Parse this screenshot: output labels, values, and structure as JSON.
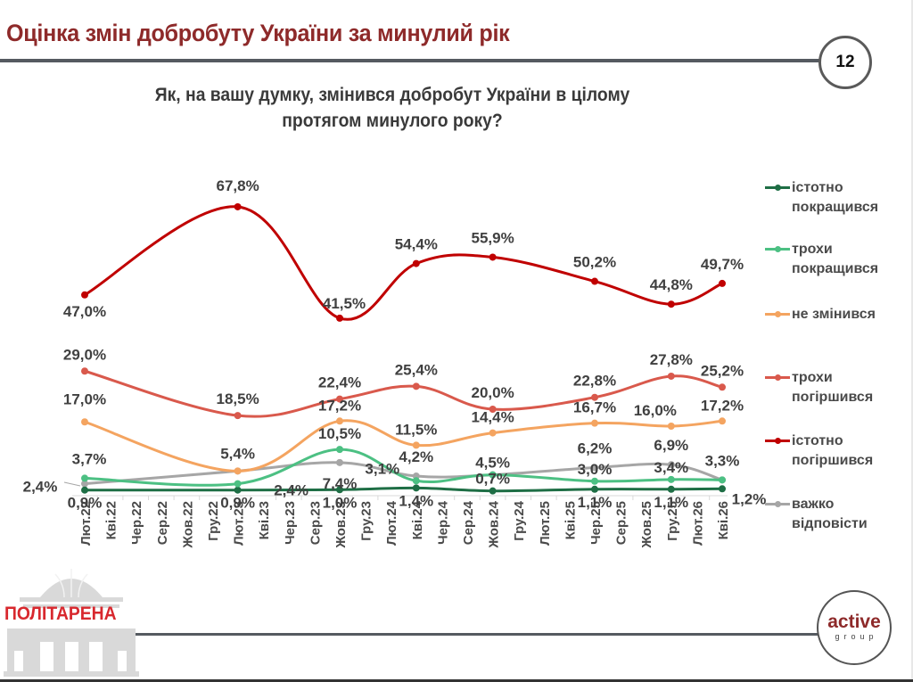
{
  "header": {
    "title": "Оцінка змін добробуту України за минулий рік",
    "page_number": "12"
  },
  "question": {
    "line1": "Як, на вашу думку, змінився добробут України в цілому",
    "line2": "протягом минулого року?"
  },
  "branding": {
    "left_logo": "ПОЛІТАРЕНА",
    "right_logo_main": "active",
    "right_logo_sub": "group"
  },
  "chart_data": {
    "type": "line",
    "title": "Як, на вашу думку, змінився добробут України в цілому протягом минулого року?",
    "xlabel": "",
    "ylabel": "",
    "ylim": [
      0,
      75
    ],
    "grid": false,
    "legend_position": "right",
    "categories": [
      "Лют.22",
      "Кві.22",
      "Чер.22",
      "Сер.22",
      "Жов.22",
      "Гру.22",
      "Лют.23",
      "Кві.23",
      "Чер.23",
      "Сер.23",
      "Жов.23",
      "Гру.23",
      "Лют.24",
      "Кві.24",
      "Чер.24",
      "Сер.24",
      "Жов.24",
      "Гру.24",
      "Лют.25",
      "Кві.25",
      "Чер.25",
      "Сер.25",
      "Жов.25",
      "Гру.25",
      "Лют.26",
      "Кві.26"
    ],
    "series": [
      {
        "name": "істотно покращився",
        "color": "#1e6e45",
        "points": [
          [
            0,
            0.9
          ],
          [
            6,
            0.9
          ],
          [
            10,
            1.0
          ],
          [
            13,
            1.4
          ],
          [
            16,
            0.7
          ],
          [
            20,
            1.1
          ],
          [
            23,
            1.1
          ],
          [
            25,
            1.2
          ]
        ],
        "labels": [
          "0,9%",
          "0,9%",
          "1,0%",
          "1,4%",
          "0,7%",
          "1,1%",
          "1,1%",
          "1,2%"
        ]
      },
      {
        "name": "трохи покращився",
        "color": "#4cc083",
        "points": [
          [
            0,
            3.7
          ],
          [
            6,
            2.4
          ],
          [
            10,
            10.5
          ],
          [
            13,
            3.1
          ],
          [
            16,
            4.5
          ],
          [
            20,
            3.0
          ],
          [
            23,
            3.4
          ],
          [
            25,
            3.3
          ]
        ],
        "labels": [
          "3,7%",
          "2,4%",
          "10,5%",
          "3,1%",
          "4,5%",
          "3,0%",
          "3,4%",
          ""
        ]
      },
      {
        "name": "не змінився",
        "color": "#f4a460",
        "points": [
          [
            0,
            17.0
          ],
          [
            6,
            5.4
          ],
          [
            10,
            17.2
          ],
          [
            13,
            11.5
          ],
          [
            16,
            14.4
          ],
          [
            20,
            16.7
          ],
          [
            23,
            16.0
          ],
          [
            25,
            17.2
          ]
        ],
        "labels": [
          "17,0%",
          "5,4%",
          "17,2%",
          "11,5%",
          "14,4%",
          "16,7%",
          "16,0%",
          "17,2%"
        ]
      },
      {
        "name": "трохи погіршився",
        "color": "#d9594c",
        "points": [
          [
            0,
            29.0
          ],
          [
            6,
            18.5
          ],
          [
            10,
            22.4
          ],
          [
            13,
            25.4
          ],
          [
            16,
            20.0
          ],
          [
            20,
            22.8
          ],
          [
            23,
            27.8
          ],
          [
            25,
            25.2
          ]
        ],
        "labels": [
          "29,0%",
          "18,5%",
          "22,4%",
          "25,4%",
          "20,0%",
          "22,8%",
          "27,8%",
          "25,2%"
        ]
      },
      {
        "name": "істотно погіршився",
        "color": "#c00000",
        "points": [
          [
            0,
            47.0
          ],
          [
            6,
            67.8
          ],
          [
            10,
            41.5
          ],
          [
            13,
            54.4
          ],
          [
            16,
            55.9
          ],
          [
            20,
            50.2
          ],
          [
            23,
            44.8
          ],
          [
            25,
            49.7
          ]
        ],
        "labels": [
          "47,0%",
          "67,8%",
          "41,5%",
          "54,4%",
          "55,9%",
          "50,2%",
          "44,8%",
          "49,7%"
        ]
      },
      {
        "name": "важко відповісти",
        "color": "#a6a6a6",
        "points": [
          [
            0,
            2.4
          ],
          [
            6,
            5.4
          ],
          [
            10,
            7.4
          ],
          [
            13,
            4.2
          ],
          [
            16,
            4.5
          ],
          [
            20,
            6.2
          ],
          [
            23,
            6.9
          ],
          [
            25,
            3.3
          ]
        ],
        "labels": [
          "2,4%",
          "",
          "7,4%",
          "4,2%",
          "",
          "6,2%",
          "6,9%",
          "3,3%"
        ]
      }
    ]
  },
  "legend": [
    {
      "label_line1": "істотно",
      "label_line2": "покращився",
      "color": "#1e6e45"
    },
    {
      "label_line1": "трохи",
      "label_line2": "покращився",
      "color": "#4cc083"
    },
    {
      "label_line1": "не змінився",
      "label_line2": "",
      "color": "#f4a460"
    },
    {
      "label_line1": "трохи",
      "label_line2": "погіршився",
      "color": "#d9594c"
    },
    {
      "label_line1": "істотно",
      "label_line2": "погіршився",
      "color": "#c00000"
    },
    {
      "label_line1": "важко",
      "label_line2": "відповісти",
      "color": "#a6a6a6"
    }
  ]
}
